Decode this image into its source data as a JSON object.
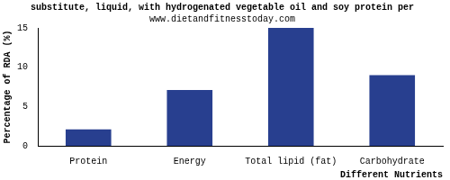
{
  "chart_data": {
    "type": "bar",
    "title": "substitute, liquid, with hydrogenated vegetable oil and soy protein per",
    "subtitle": "www.dietandfitnesstoday.com",
    "x_label": "Different Nutrients",
    "y_label": "Percentage of RDA (%)",
    "categories": [
      "Protein",
      "Energy",
      "Total lipid (fat)",
      "Carbohydrate"
    ],
    "values": [
      2.1,
      7.1,
      15,
      9
    ],
    "color": "#283f8f",
    "ylim": [
      0,
      15
    ],
    "yticks": [
      0,
      5,
      10,
      15
    ],
    "grid": false
  }
}
